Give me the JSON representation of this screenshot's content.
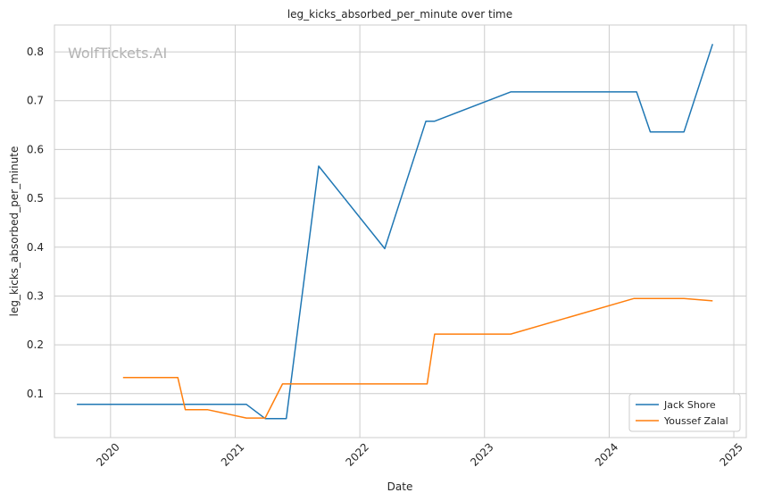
{
  "chart_data": {
    "type": "line",
    "title": "leg_kicks_absorbed_per_minute over time",
    "xlabel": "Date",
    "ylabel": "leg_kicks_absorbed_per_minute",
    "watermark": "WolfTickets.AI",
    "xlim": [
      2019.55,
      2025.1
    ],
    "ylim": [
      0.01,
      0.855
    ],
    "x_ticks": [
      2020,
      2021,
      2022,
      2023,
      2024,
      2025
    ],
    "x_tick_labels": [
      "2020",
      "2021",
      "2022",
      "2023",
      "2024",
      "2025"
    ],
    "y_ticks": [
      0.1,
      0.2,
      0.3,
      0.4,
      0.5,
      0.6,
      0.7,
      0.8
    ],
    "y_tick_labels": [
      "0.1",
      "0.2",
      "0.3",
      "0.4",
      "0.5",
      "0.6",
      "0.7",
      "0.8"
    ],
    "grid": true,
    "legend_position": "bottom-right",
    "series": [
      {
        "name": "Jack Shore",
        "color": "#1f77b4",
        "x": [
          2019.73,
          2021.09,
          2021.24,
          2021.41,
          2021.67,
          2022.2,
          2022.53,
          2022.6,
          2023.21,
          2024.22,
          2024.33,
          2024.6,
          2024.83
        ],
        "y": [
          0.078,
          0.078,
          0.049,
          0.049,
          0.566,
          0.397,
          0.658,
          0.658,
          0.718,
          0.718,
          0.636,
          0.636,
          0.816
        ]
      },
      {
        "name": "Youssef Zalal",
        "color": "#ff7f0e",
        "x": [
          2020.1,
          2020.54,
          2020.6,
          2020.78,
          2021.09,
          2021.24,
          2021.38,
          2021.42,
          2022.54,
          2022.6,
          2023.21,
          2024.2,
          2024.6,
          2024.83
        ],
        "y": [
          0.133,
          0.133,
          0.067,
          0.067,
          0.05,
          0.05,
          0.12,
          0.12,
          0.12,
          0.222,
          0.222,
          0.295,
          0.295,
          0.29
        ]
      }
    ]
  }
}
